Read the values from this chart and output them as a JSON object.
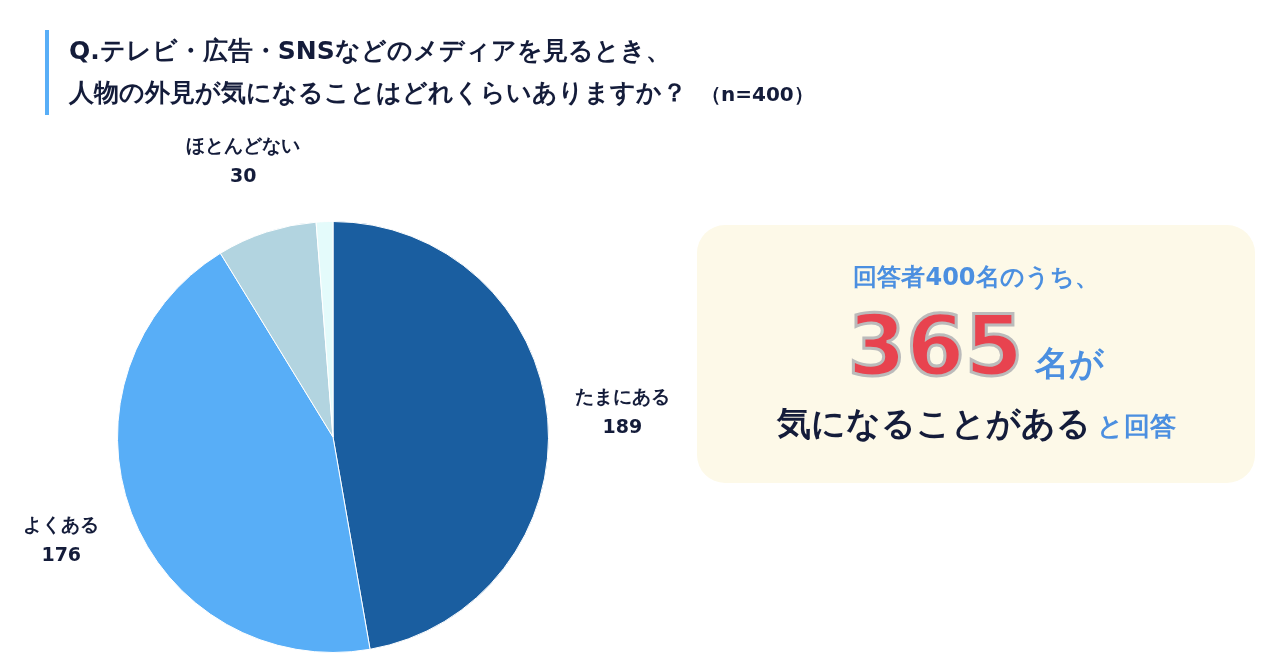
{
  "chart_data": {
    "type": "pie",
    "title": "Q.テレビ・広告・SNSなどのメディアを見るとき、人物の外見が気になることはどれくらいありますか？",
    "subtitle": "（n=400）",
    "categories": [
      "たまにある",
      "よくある",
      "ほとんどない",
      null
    ],
    "values": [
      189,
      176,
      30,
      5
    ],
    "colors": [
      "#1a5ea0",
      "#58aef7",
      "#b2d4e0",
      "#e4fbfb"
    ],
    "value_labels": [
      "189",
      "176",
      "30",
      null
    ],
    "legend": false,
    "annotations": [
      "回答者400名のうち、",
      "365",
      "名が",
      "気になることがある",
      "と回答"
    ]
  }
}
